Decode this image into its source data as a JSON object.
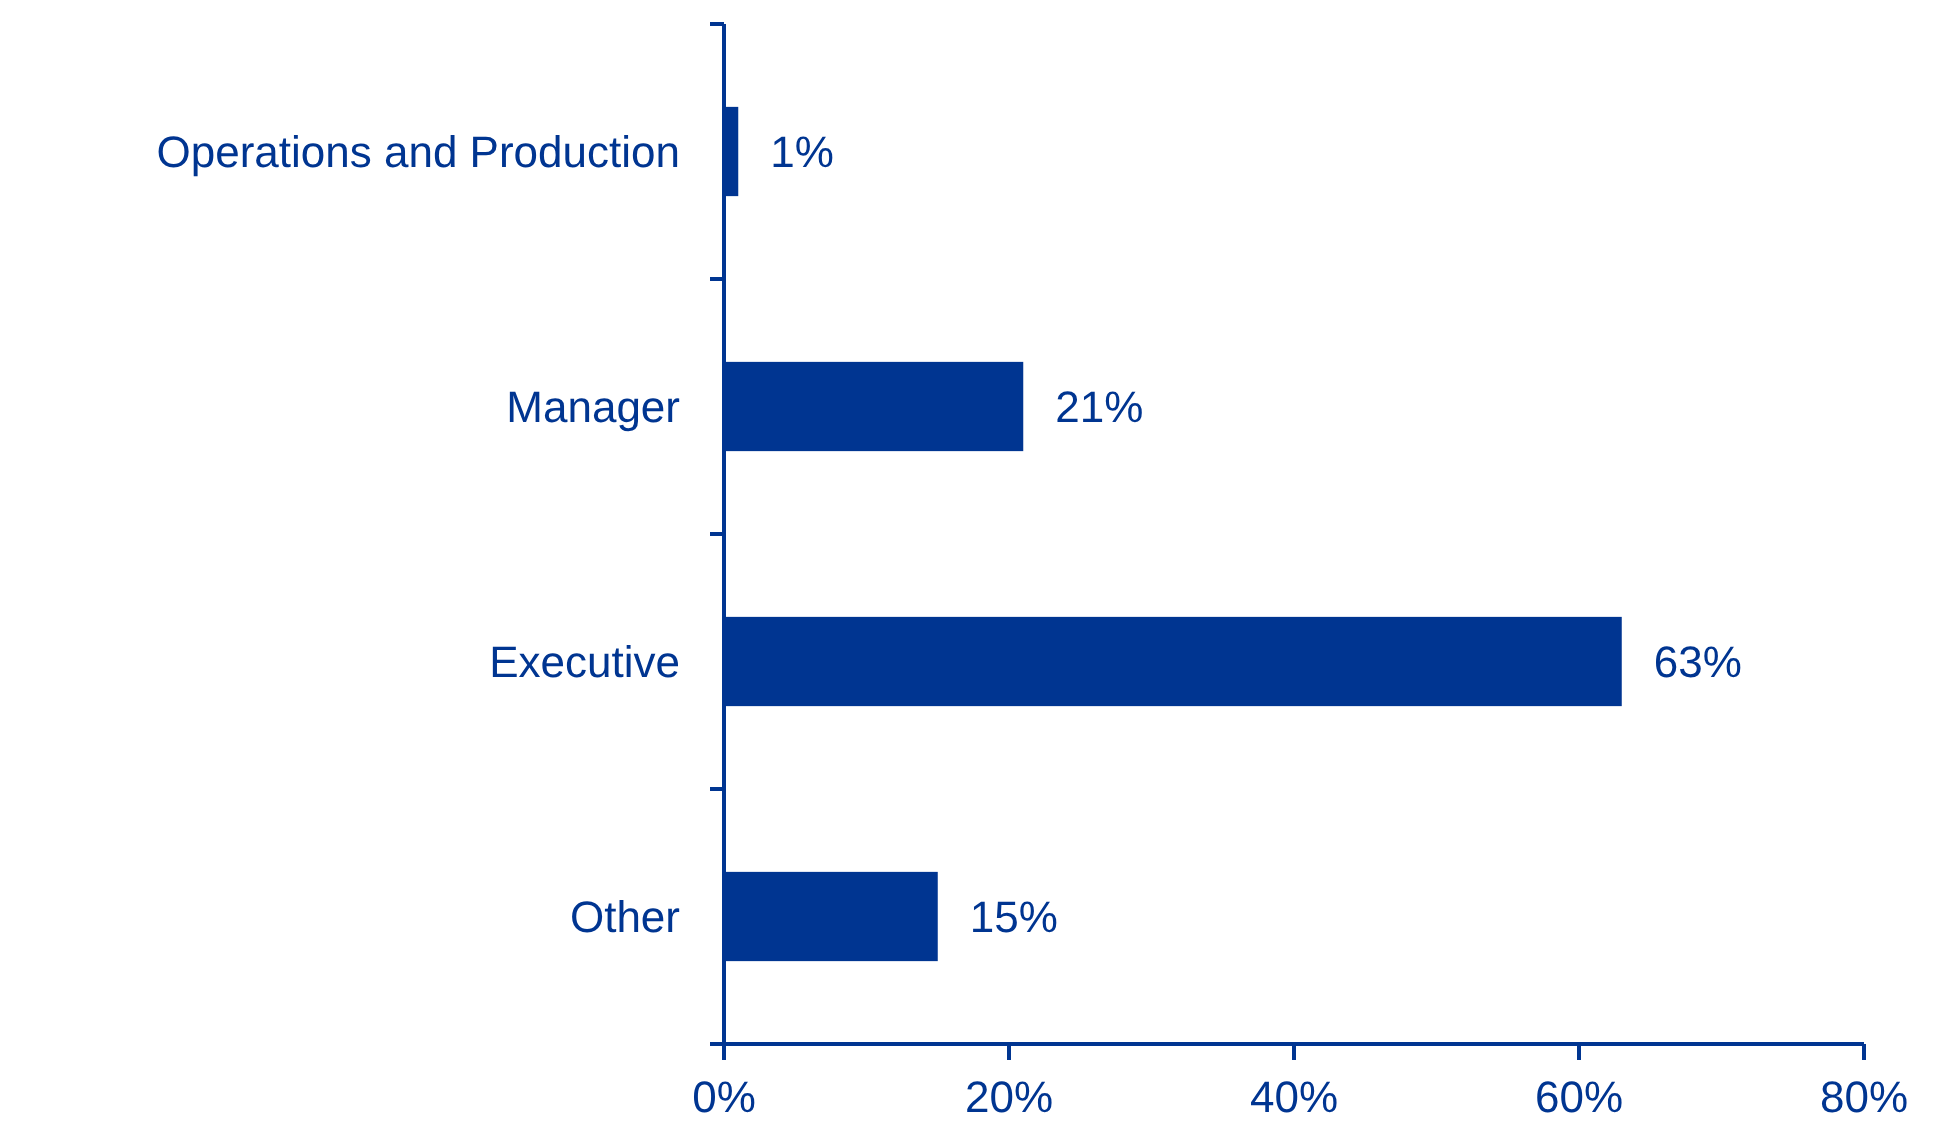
{
  "chart_data": {
    "type": "bar",
    "orientation": "horizontal",
    "categories": [
      "Operations and Production",
      "Manager",
      "Executive",
      "Other"
    ],
    "values": [
      1,
      21,
      63,
      15
    ],
    "color": "#003591",
    "value_labels": [
      "1%",
      "21%",
      "63%",
      "15%"
    ],
    "xlim": [
      0,
      80
    ],
    "xticks": [
      {
        "value": 0,
        "label": "0%"
      },
      {
        "value": 20,
        "label": "20%"
      },
      {
        "value": 40,
        "label": "40%"
      },
      {
        "value": 60,
        "label": "60%"
      },
      {
        "value": 80,
        "label": "80%"
      }
    ]
  }
}
